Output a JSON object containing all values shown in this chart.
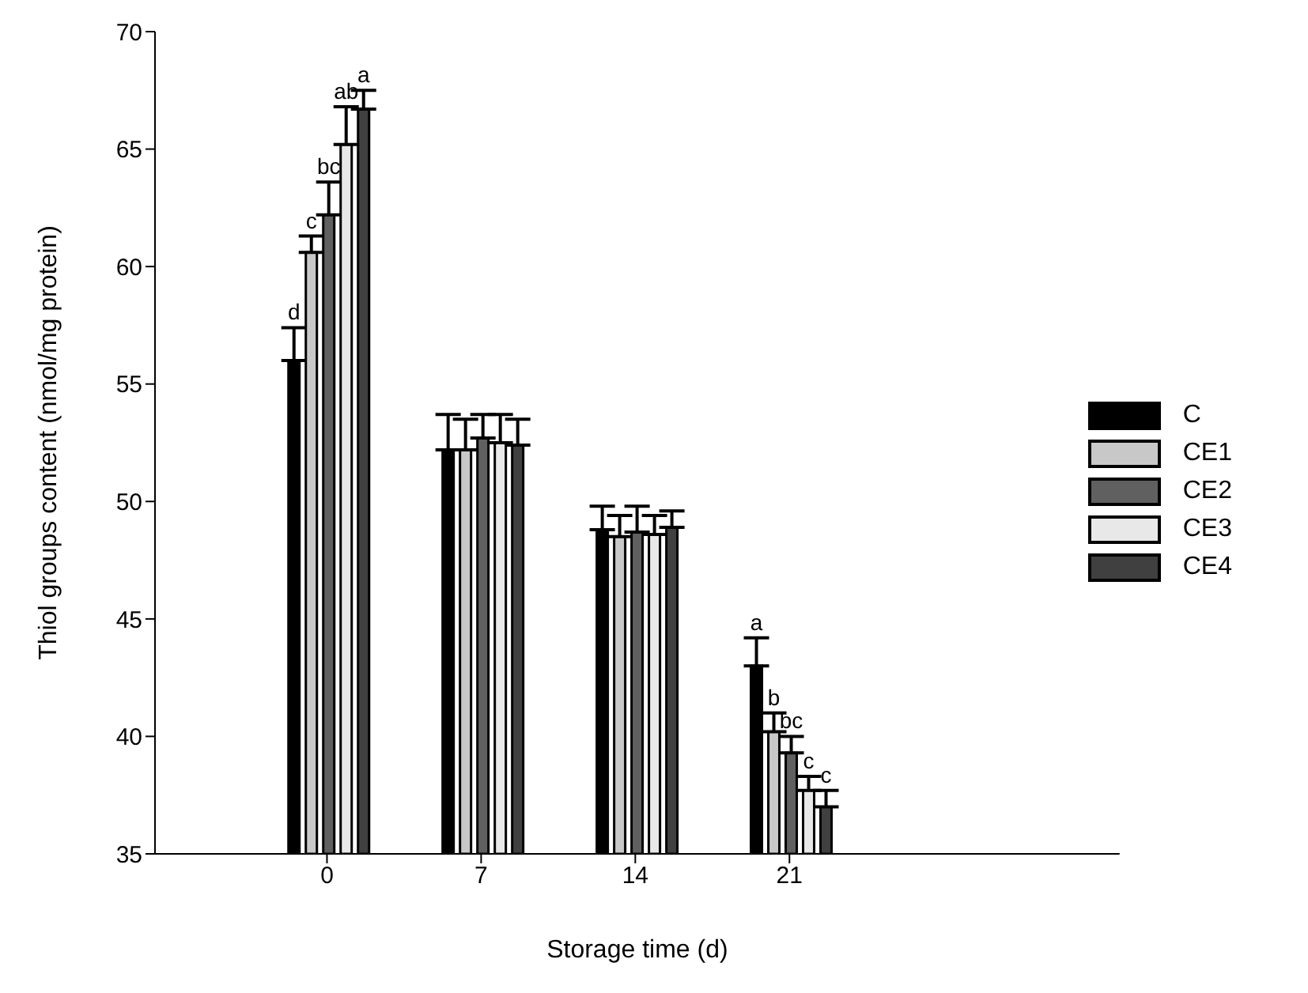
{
  "chart_data": {
    "type": "bar",
    "xlabel": "Storage time (d)",
    "ylabel": "Thiol groups content (nmol/mg protein)",
    "categories": [
      "0",
      "7",
      "14",
      "21"
    ],
    "series": [
      {
        "name": "C",
        "color": "#000000",
        "values": [
          56.0,
          52.2,
          48.8,
          43.0
        ],
        "errors": [
          1.4,
          1.5,
          1.0,
          1.2
        ],
        "value_labels": [
          "d",
          null,
          null,
          "a"
        ]
      },
      {
        "name": "CE1",
        "color": "#c8c8c8",
        "values": [
          60.6,
          52.2,
          48.5,
          40.2
        ],
        "errors": [
          0.7,
          1.3,
          0.9,
          0.8
        ],
        "value_labels": [
          "c",
          null,
          null,
          "b"
        ]
      },
      {
        "name": "CE2",
        "color": "#606060",
        "values": [
          62.2,
          52.7,
          48.7,
          39.3
        ],
        "errors": [
          1.4,
          1.0,
          1.1,
          0.7
        ],
        "value_labels": [
          "bc",
          null,
          null,
          "bc"
        ]
      },
      {
        "name": "CE3",
        "color": "#e8e8e8",
        "values": [
          65.2,
          52.5,
          48.6,
          37.7
        ],
        "errors": [
          1.6,
          1.2,
          0.8,
          0.6
        ],
        "value_labels": [
          "ab",
          null,
          null,
          "c"
        ]
      },
      {
        "name": "CE4",
        "color": "#404040",
        "values": [
          66.7,
          52.4,
          48.9,
          37.0
        ],
        "errors": [
          0.8,
          1.1,
          0.7,
          0.7
        ],
        "value_labels": [
          "a",
          null,
          null,
          "c"
        ]
      }
    ],
    "ylim": [
      35,
      70
    ],
    "yticks": [
      35,
      40,
      45,
      50,
      55,
      60,
      65,
      70
    ],
    "grid": false,
    "legend": "right"
  }
}
